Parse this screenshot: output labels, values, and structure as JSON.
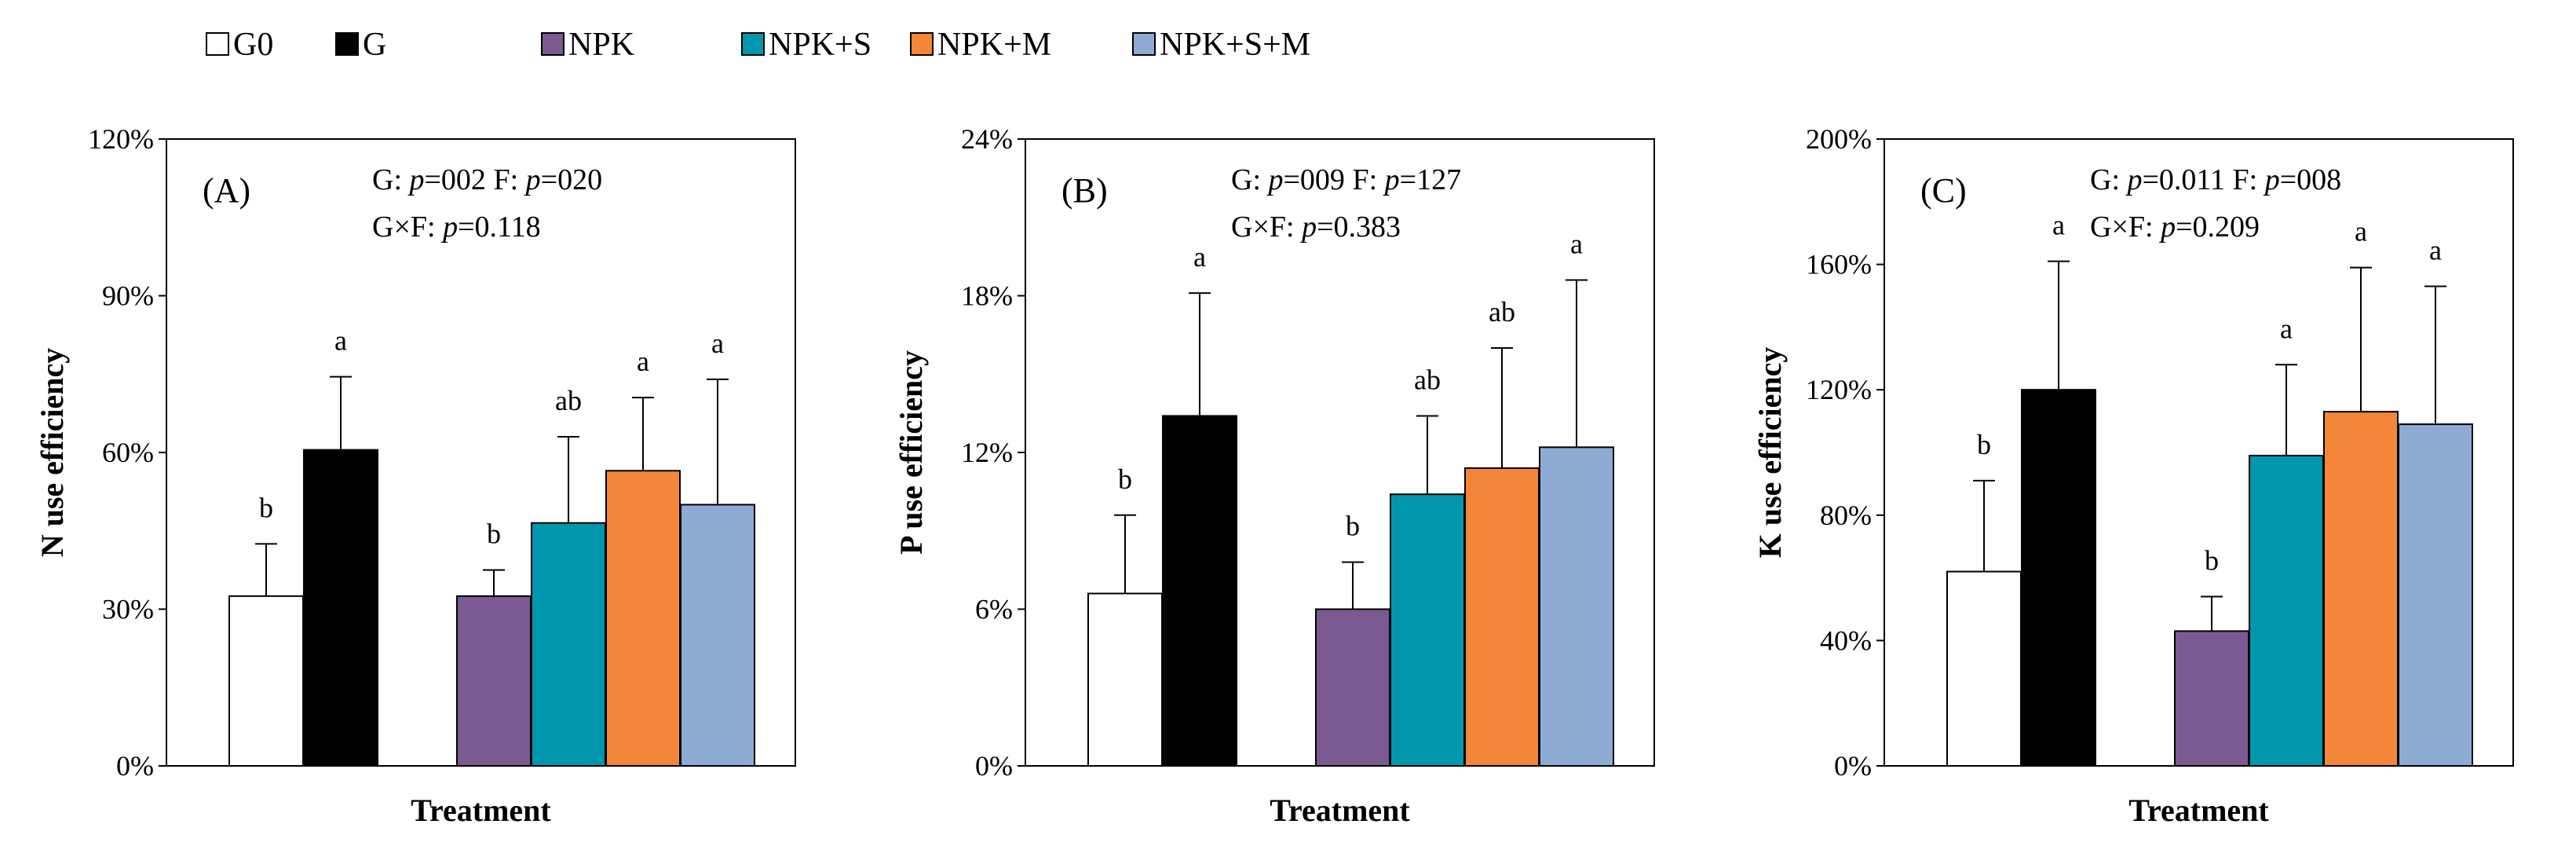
{
  "legend": [
    {
      "name": "G0",
      "color": "#ffffff"
    },
    {
      "name": "G",
      "color": "#000000"
    },
    {
      "name": "NPK",
      "color": "#7b5a94"
    },
    {
      "name": "NPK+S",
      "color": "#0097ae"
    },
    {
      "name": "NPK+M",
      "color": "#f4863a"
    },
    {
      "name": "NPK+S+M",
      "color": "#8eabd4"
    }
  ],
  "chart_data": [
    {
      "type": "bar",
      "panel_label": "(A)",
      "stats": [
        {
          "name": "G",
          "p": "002"
        },
        {
          "name": "F",
          "p": "020"
        },
        {
          "name": "G×F",
          "p": "0.118"
        }
      ],
      "xlabel": "Treatment",
      "ylabel": "N use efficiency",
      "ylim": [
        0,
        120
      ],
      "yticks": [
        0,
        30,
        60,
        90,
        120
      ],
      "ytick_labels": [
        "0%",
        "30%",
        "60%",
        "90%",
        "120%"
      ],
      "categories": [
        "G0",
        "G",
        "NPK",
        "NPK+S",
        "NPK+M",
        "NPK+S+M"
      ],
      "values": [
        32.5,
        60.5,
        32.5,
        46.5,
        56.5,
        50
      ],
      "errors": [
        10,
        14,
        5,
        16.5,
        14,
        24
      ],
      "sig": [
        "b",
        "a",
        "b",
        "ab",
        "a",
        "a"
      ]
    },
    {
      "type": "bar",
      "panel_label": "(B)",
      "stats": [
        {
          "name": "G",
          "p": "009"
        },
        {
          "name": "F",
          "p": "127"
        },
        {
          "name": "G×F",
          "p": "0.383"
        }
      ],
      "xlabel": "Treatment",
      "ylabel": "P use efficiency",
      "ylim": [
        0,
        24
      ],
      "yticks": [
        0,
        6,
        12,
        18,
        24
      ],
      "ytick_labels": [
        "0%",
        "6%",
        "12%",
        "18%",
        "24%"
      ],
      "categories": [
        "G0",
        "G",
        "NPK",
        "NPK+S",
        "NPK+M",
        "NPK+S+M"
      ],
      "values": [
        6.6,
        13.4,
        6.0,
        10.4,
        11.4,
        12.2
      ],
      "errors": [
        3.0,
        4.7,
        1.8,
        3.0,
        4.6,
        6.4
      ],
      "sig": [
        "b",
        "a",
        "b",
        "ab",
        "ab",
        "a"
      ]
    },
    {
      "type": "bar",
      "panel_label": "(C)",
      "stats": [
        {
          "name": "G",
          "p": "0.011"
        },
        {
          "name": "F",
          "p": "008"
        },
        {
          "name": "G×F",
          "p": "0.209"
        }
      ],
      "xlabel": "Treatment",
      "ylabel": "K use efficiency",
      "ylim": [
        0,
        200
      ],
      "yticks": [
        0,
        40,
        80,
        120,
        160,
        200
      ],
      "ytick_labels": [
        "0%",
        "40%",
        "80%",
        "120%",
        "160%",
        "200%"
      ],
      "categories": [
        "G0",
        "G",
        "NPK",
        "NPK+S",
        "NPK+M",
        "NPK+S+M"
      ],
      "values": [
        62,
        120,
        43,
        99,
        113,
        109
      ],
      "errors": [
        29,
        41,
        11,
        29,
        46,
        44
      ],
      "sig": [
        "b",
        "a",
        "b",
        "a",
        "a",
        "a"
      ]
    }
  ]
}
